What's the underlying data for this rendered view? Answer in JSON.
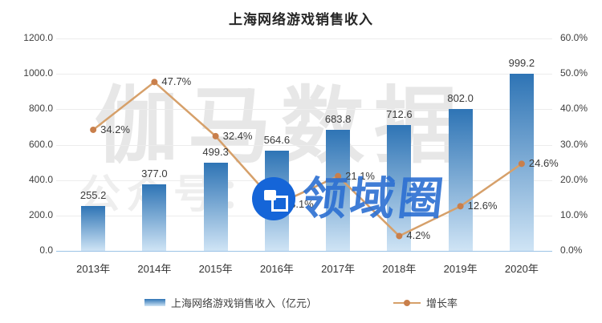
{
  "title": "上海网络游戏销售收入",
  "watermarks": {
    "large_text": "伽马数据",
    "account_text": "公众号：",
    "logo_text": "领域圈"
  },
  "legend": {
    "items": [
      {
        "label": "上海网络游戏销售收入（亿元）",
        "type": "bar"
      },
      {
        "label": "增长率",
        "type": "line"
      }
    ]
  },
  "colors": {
    "bar_top": "#2e74b5",
    "bar_bottom": "#cfe4f5",
    "line": "#d6a06a",
    "marker": "#c97f4b",
    "grid": "#ececec",
    "baseline": "#9cc3e6",
    "logo_blue": "#1565d8",
    "logo_text_blue": "rgba(43,111,210,0.9)"
  },
  "chart_data": {
    "type": "bar+line",
    "title": "上海网络游戏销售收入",
    "categories": [
      "2013年",
      "2014年",
      "2015年",
      "2016年",
      "2017年",
      "2018年",
      "2019年",
      "2020年"
    ],
    "series": [
      {
        "name": "上海网络游戏销售收入（亿元）",
        "type": "bar",
        "axis": "left",
        "values": [
          255.2,
          377.0,
          499.3,
          564.6,
          683.8,
          712.6,
          802.0,
          999.2
        ],
        "labels": [
          "255.2",
          "377.0",
          "499.3",
          "564.6",
          "683.8",
          "712.6",
          "802.0",
          "999.2"
        ]
      },
      {
        "name": "增长率",
        "type": "line",
        "axis": "right",
        "values": [
          34.2,
          47.7,
          32.4,
          13.1,
          21.1,
          4.2,
          12.6,
          24.6
        ],
        "labels": [
          "34.2%",
          "47.7%",
          "32.4%",
          "13.1%",
          "21.1%",
          "4.2%",
          "12.6%",
          "24.6%"
        ]
      }
    ],
    "left_axis": {
      "min": 0,
      "max": 1200,
      "step": 200,
      "tick_labels": [
        "1200.0",
        "1000.0",
        "800.0",
        "600.0",
        "400.0",
        "200.0",
        "0.0"
      ]
    },
    "right_axis": {
      "min": 0,
      "max": 60,
      "step": 10,
      "tick_labels": [
        "60.0%",
        "50.0%",
        "40.0%",
        "30.0%",
        "20.0%",
        "10.0%",
        "0.0%"
      ]
    },
    "grid": true,
    "legend_position": "bottom"
  }
}
